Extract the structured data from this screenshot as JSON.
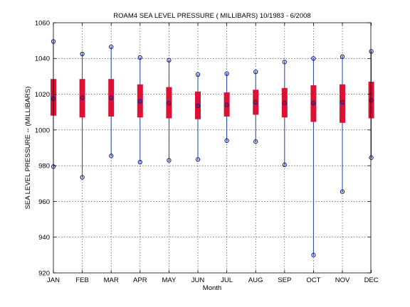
{
  "chart_data": {
    "type": "boxplot",
    "title": "ROAM4  SEA LEVEL PRESSURE ( MILLIBARS) 10/1983 - 6/2008",
    "xlabel": "Month",
    "ylabel": "SEA LEVEL PRESSURE -- (MILLIBARS)",
    "ylim": [
      920,
      1060
    ],
    "yticks": [
      920,
      940,
      960,
      980,
      1000,
      1020,
      1040,
      1060
    ],
    "grid": true,
    "categories": [
      "JAN",
      "FEB",
      "MAR",
      "APR",
      "MAY",
      "JUN",
      "JUL",
      "AUG",
      "SEP",
      "OCT",
      "NOV",
      "DEC"
    ],
    "series": [
      {
        "min": 979.5,
        "q1": 1008.0,
        "median": 1017.5,
        "q3": 1028.5,
        "max": 1049.5
      },
      {
        "min": 973.5,
        "q1": 1007.0,
        "median": 1018.0,
        "q3": 1028.5,
        "max": 1042.5
      },
      {
        "min": 985.5,
        "q1": 1007.5,
        "median": 1018.0,
        "q3": 1028.5,
        "max": 1046.5
      },
      {
        "min": 982.0,
        "q1": 1007.0,
        "median": 1016.0,
        "q3": 1025.5,
        "max": 1040.5
      },
      {
        "min": 983.0,
        "q1": 1006.5,
        "median": 1015.0,
        "q3": 1024.0,
        "max": 1039.0
      },
      {
        "min": 983.5,
        "q1": 1006.0,
        "median": 1013.5,
        "q3": 1021.5,
        "max": 1031.0
      },
      {
        "min": 994.0,
        "q1": 1007.5,
        "median": 1014.0,
        "q3": 1021.0,
        "max": 1031.5
      },
      {
        "min": 993.5,
        "q1": 1008.5,
        "median": 1015.5,
        "q3": 1022.5,
        "max": 1032.5
      },
      {
        "min": 980.5,
        "q1": 1007.0,
        "median": 1015.0,
        "q3": 1023.5,
        "max": 1038.0
      },
      {
        "min": 930.0,
        "q1": 1004.5,
        "median": 1015.0,
        "q3": 1025.0,
        "max": 1040.0
      },
      {
        "min": 965.5,
        "q1": 1004.0,
        "median": 1015.5,
        "q3": 1025.5,
        "max": 1041.0
      },
      {
        "min": 984.5,
        "q1": 1006.5,
        "median": 1016.5,
        "q3": 1027.0,
        "max": 1044.0
      }
    ],
    "colors": {
      "box": "#dd1133",
      "whisker": "#1f3ea8",
      "marker": "#0a1f8f",
      "axis": "#000000",
      "background": "#ffffff"
    }
  }
}
